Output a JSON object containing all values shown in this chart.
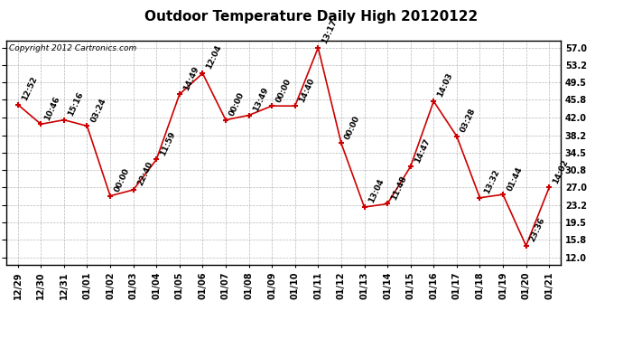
{
  "title": "Outdoor Temperature Daily High 20120122",
  "copyright": "Copyright 2012 Cartronics.com",
  "dates": [
    "12/29",
    "12/30",
    "12/31",
    "01/01",
    "01/02",
    "01/03",
    "01/04",
    "01/05",
    "01/06",
    "01/07",
    "01/08",
    "01/09",
    "01/10",
    "01/11",
    "01/12",
    "01/13",
    "01/14",
    "01/15",
    "01/16",
    "01/17",
    "01/18",
    "01/19",
    "01/20",
    "01/21"
  ],
  "values": [
    44.8,
    40.6,
    41.5,
    40.2,
    25.2,
    26.5,
    33.0,
    47.0,
    51.5,
    41.5,
    42.5,
    44.5,
    44.5,
    57.0,
    36.5,
    22.8,
    23.5,
    31.5,
    45.5,
    38.0,
    24.8,
    25.5,
    14.5,
    27.0
  ],
  "labels": [
    "12:52",
    "10:46",
    "15:16",
    "03:24",
    "00:00",
    "22:40",
    "11:59",
    "14:49",
    "12:04",
    "00:00",
    "13:49",
    "00:00",
    "14:40",
    "13:17",
    "00:00",
    "13:04",
    "11:48",
    "14:47",
    "14:03",
    "03:28",
    "13:32",
    "01:44",
    "23:36",
    "14:02"
  ],
  "yticks": [
    12.0,
    15.8,
    19.5,
    23.2,
    27.0,
    30.8,
    34.5,
    38.2,
    42.0,
    45.8,
    49.5,
    53.2,
    57.0
  ],
  "ymin": 10.5,
  "ymax": 58.5,
  "line_color": "#cc0000",
  "marker_color": "#cc0000",
  "bg_color": "#ffffff",
  "grid_color": "#b0b0b0",
  "title_fontsize": 11,
  "label_fontsize": 6.5,
  "tick_fontsize": 7,
  "copyright_fontsize": 6.5
}
